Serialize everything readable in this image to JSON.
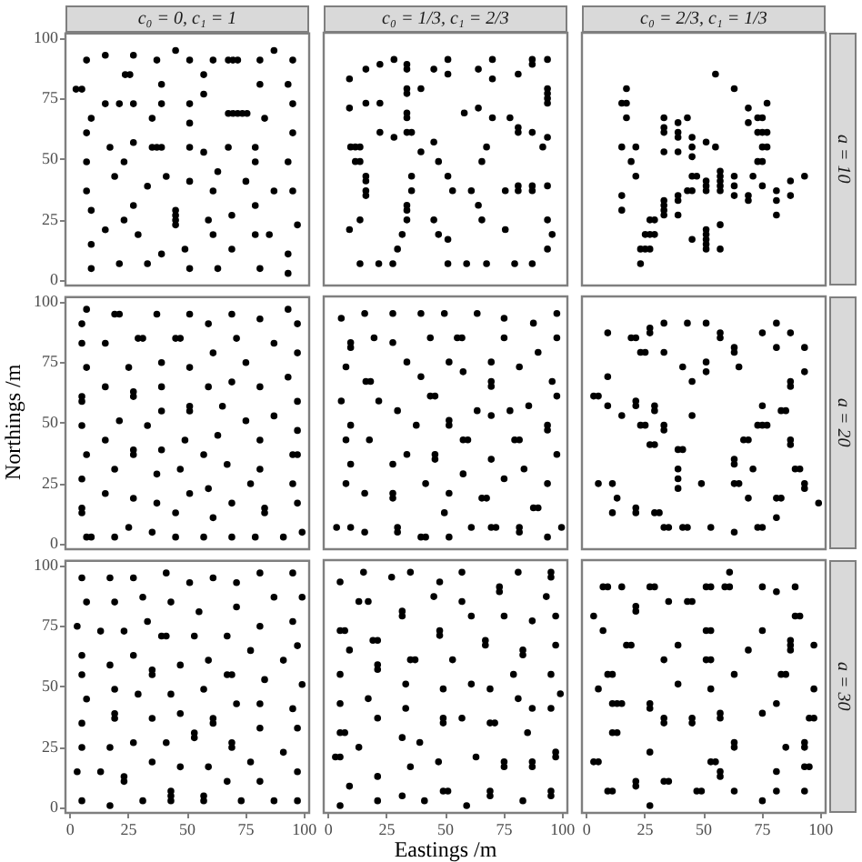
{
  "chart_data": [
    {
      "type": "scatter",
      "title": "c₀ = 0,  c₁ = 1",
      "color": "#000000",
      "marker": "circle",
      "xlim": [
        -2,
        102
      ],
      "ylim": [
        -2,
        102
      ],
      "xticks": [
        0,
        25,
        50,
        75,
        100
      ],
      "yticks": [
        0,
        25,
        50,
        75,
        100
      ],
      "tick_labels": "y",
      "x": [
        2.5,
        5,
        7,
        15,
        27,
        37,
        45,
        51,
        61,
        67.5,
        69.5,
        71.5,
        81,
        87,
        95,
        23.5,
        25.5,
        57,
        39,
        93,
        81,
        57,
        9,
        15,
        21,
        27,
        39,
        51,
        95,
        67.5,
        69.5,
        71.5,
        73.5,
        75.5,
        35,
        83,
        51,
        7,
        95,
        27,
        17,
        35,
        37,
        39,
        51,
        67.5,
        79,
        57,
        7,
        23,
        79,
        93,
        63,
        19,
        41,
        75,
        51,
        33,
        7,
        61,
        87,
        95,
        9,
        27,
        79,
        45,
        45,
        45,
        45,
        23,
        59,
        69,
        97,
        15,
        29,
        61,
        79,
        85,
        9,
        49,
        69,
        39,
        93,
        21,
        33,
        9,
        51,
        63,
        81,
        93
      ],
      "values": [
        79,
        79,
        91,
        93,
        93,
        91,
        95,
        91,
        91,
        91,
        91,
        91,
        91,
        95,
        91,
        85,
        85,
        85,
        81,
        81,
        81,
        77,
        67,
        73,
        73,
        73,
        73,
        73,
        73,
        69,
        69,
        69,
        69,
        69,
        67,
        67,
        65,
        61,
        61,
        57,
        55,
        55,
        55,
        55,
        55,
        55,
        55,
        53,
        49,
        49,
        49,
        49,
        45,
        43,
        43,
        41,
        41,
        39,
        37,
        37,
        37,
        37,
        29,
        31,
        31,
        29,
        27,
        25,
        23,
        25,
        25,
        27,
        23,
        21,
        19,
        19,
        19,
        19,
        15,
        13,
        13,
        11,
        11,
        7,
        7,
        5,
        5,
        5,
        5,
        3
      ]
    },
    {
      "type": "scatter",
      "title": "c₀ = 1/3,  c₁ = 2/3",
      "color": "#000000",
      "marker": "circle",
      "xlim": [
        -2,
        102
      ],
      "ylim": [
        -2,
        102
      ],
      "xticks": [
        0,
        25,
        50,
        75,
        100
      ],
      "yticks": [
        0,
        25,
        50,
        75,
        100
      ],
      "tick_labels": false,
      "x": [
        9,
        9,
        16,
        22,
        28,
        33.5,
        33.5,
        33.5,
        33.5,
        39.5,
        33.5,
        33.5,
        45,
        16,
        22,
        22,
        28,
        33.5,
        35.5,
        9.5,
        11.5,
        13.5,
        11.5,
        13.5,
        16,
        16,
        16,
        16,
        39.5,
        45,
        35.5,
        35.5,
        33.5,
        33.5,
        33.5,
        13.5,
        9,
        31.5,
        29.5,
        13.5,
        21.5,
        27.5,
        45,
        47,
        47,
        51,
        51,
        64,
        70,
        70,
        81,
        87,
        87,
        93.5,
        93.5,
        93.5,
        93.5,
        93.5,
        58,
        64,
        70,
        77.5,
        81,
        81,
        87,
        93.5,
        67.5,
        91.5,
        65.5,
        51,
        53,
        61,
        75.5,
        81,
        81,
        87,
        87,
        93.5,
        64,
        65.5,
        93.5,
        51,
        75.5,
        95.5,
        93.5,
        51,
        59,
        67.5,
        79.5,
        87
      ],
      "values": [
        83,
        71,
        87,
        89,
        91,
        89,
        87,
        79,
        77,
        79,
        69,
        67,
        87,
        73,
        73,
        61,
        59,
        61,
        61,
        55,
        55,
        55,
        49,
        49,
        43,
        41,
        37,
        35,
        53,
        57,
        43,
        37,
        31,
        29,
        25,
        25,
        21,
        19,
        13,
        7,
        7,
        7,
        25,
        19,
        49,
        91,
        85,
        87,
        91,
        83,
        85,
        91,
        89,
        91,
        79,
        77,
        75,
        73,
        69,
        71,
        67,
        67,
        63,
        61,
        61,
        59,
        55,
        55,
        49,
        43,
        37,
        37,
        37,
        39,
        37,
        39,
        37,
        39,
        31,
        25,
        25,
        17,
        21,
        19,
        13,
        7,
        7,
        7,
        7,
        7
      ]
    },
    {
      "type": "scatter",
      "title": "c₀ = 2/3,  c₁ = 1/3",
      "y2label": "a = 10",
      "color": "#000000",
      "marker": "circle",
      "xlim": [
        -2,
        102
      ],
      "ylim": [
        -2,
        102
      ],
      "xticks": [
        0,
        25,
        50,
        75,
        100
      ],
      "yticks": [
        0,
        25,
        50,
        75,
        100
      ],
      "tick_labels": false,
      "x": [
        55,
        63,
        17,
        15,
        17,
        17,
        33,
        39,
        43,
        33,
        33,
        39,
        39,
        45,
        45,
        45,
        51,
        55,
        15,
        21,
        19,
        21,
        33,
        39,
        45,
        47,
        51,
        57,
        57,
        57,
        57,
        57,
        63,
        63,
        63,
        69,
        69,
        73,
        75,
        73,
        75,
        77,
        75,
        77,
        73,
        75,
        77,
        71,
        75,
        69,
        69,
        81,
        81,
        81,
        87,
        87,
        93,
        51,
        51,
        43,
        45,
        39,
        39,
        33,
        33,
        33,
        33,
        39,
        15,
        15,
        27,
        29,
        25,
        27,
        29,
        23,
        25,
        27,
        23,
        57,
        51,
        51,
        51,
        51,
        51,
        45,
        57
      ],
      "values": [
        85,
        79,
        79,
        73,
        73,
        67,
        67,
        65,
        67,
        63,
        61,
        61,
        59,
        59,
        55,
        51,
        57,
        55,
        55,
        55,
        49,
        43,
        53,
        53,
        43,
        43,
        41,
        45,
        43,
        41,
        39,
        37,
        43,
        39,
        35,
        71,
        65,
        67,
        67,
        61,
        61,
        61,
        55,
        55,
        49,
        49,
        73,
        43,
        39,
        35,
        33,
        37,
        33,
        27,
        41,
        35,
        43,
        39,
        37,
        37,
        37,
        35,
        33,
        33,
        31,
        29,
        27,
        27,
        35,
        29,
        25,
        25,
        19,
        19,
        19,
        13,
        13,
        13,
        7,
        23,
        21,
        19,
        17,
        15,
        13,
        17,
        13
      ]
    },
    {
      "type": "scatter",
      "ylabel": "Northings /m",
      "color": "#000000",
      "marker": "circle",
      "xlim": [
        -2,
        102
      ],
      "ylim": [
        -2,
        102
      ],
      "xticks": [
        0,
        25,
        50,
        75,
        100
      ],
      "yticks": [
        0,
        25,
        50,
        75,
        100
      ],
      "tick_labels": "y",
      "x": [
        7,
        5,
        5,
        19,
        21,
        37,
        51,
        59,
        69,
        81,
        93,
        97,
        15,
        29,
        31,
        45,
        47,
        71,
        87,
        61,
        97,
        7,
        25,
        39,
        51,
        75,
        93,
        5,
        5,
        15,
        27,
        27,
        39,
        59,
        69,
        81,
        97,
        39,
        51,
        51,
        65,
        21,
        5,
        33,
        75,
        87,
        97,
        15,
        49,
        63,
        81,
        7,
        27,
        27,
        39,
        57,
        67,
        95,
        97,
        19,
        47,
        81,
        37,
        5,
        59,
        77,
        95,
        15,
        51,
        5,
        5,
        27,
        37,
        45,
        69,
        83,
        83,
        97,
        61,
        25,
        35,
        7,
        9,
        19,
        45,
        57,
        69,
        79,
        91,
        99
      ],
      "values": [
        97,
        91,
        83,
        95,
        95,
        95,
        95,
        91,
        95,
        93,
        97,
        91,
        83,
        85,
        85,
        85,
        85,
        85,
        83,
        79,
        79,
        73,
        73,
        75,
        73,
        75,
        69,
        61,
        59,
        65,
        63,
        61,
        65,
        65,
        67,
        65,
        59,
        55,
        57,
        55,
        57,
        51,
        49,
        49,
        51,
        53,
        47,
        43,
        43,
        45,
        43,
        37,
        39,
        37,
        39,
        37,
        33,
        37,
        37,
        31,
        31,
        31,
        29,
        27,
        23,
        25,
        25,
        21,
        21,
        15,
        13,
        19,
        17,
        13,
        17,
        15,
        13,
        17,
        11,
        7,
        5,
        3,
        3,
        3,
        3,
        3,
        3,
        3,
        3,
        5
      ]
    },
    {
      "type": "scatter",
      "color": "#000000",
      "marker": "circle",
      "xlim": [
        -2,
        102
      ],
      "ylim": [
        -2,
        102
      ],
      "xticks": [
        0,
        25,
        50,
        75,
        100
      ],
      "yticks": [
        0,
        25,
        50,
        75,
        100
      ],
      "tick_labels": false,
      "x": [
        5.5,
        15.5,
        27.5,
        39.5,
        49.5,
        9.5,
        9.5,
        19.5,
        27.5,
        43.5,
        7.5,
        16,
        18,
        33.5,
        39.5,
        43.5,
        45.5,
        5.5,
        21.5,
        29.5,
        37.5,
        9.5,
        7.5,
        17.5,
        9.5,
        27.5,
        33.5,
        7.5,
        15.5,
        27.5,
        27.5,
        41.5,
        3.5,
        9.5,
        15.5,
        29.5,
        29.5,
        39.5,
        41.5,
        49.5,
        63.5,
        75,
        87.5,
        97.5,
        55,
        57,
        75,
        97.5,
        89.5,
        51.5,
        57.5,
        69.5,
        81.5,
        69.5,
        69.5,
        95.5,
        97.5,
        63.5,
        69.5,
        77.5,
        85.5,
        51.5,
        51.5,
        93.5,
        93.5,
        57.5,
        59.5,
        79.5,
        81.5,
        45.5,
        45.5,
        69.5,
        97.5,
        57.5,
        83.5,
        75,
        93.5,
        51.5,
        65.5,
        67.5,
        87.5,
        89.5,
        61,
        69.5,
        71.5,
        81.5,
        81.5,
        93.5,
        99.5,
        51.5
      ],
      "values": [
        93,
        95,
        95,
        95,
        95,
        83,
        81,
        85,
        83,
        85,
        73,
        67,
        67,
        75,
        69,
        61,
        61,
        59,
        59,
        55,
        49,
        49,
        43,
        43,
        33,
        33,
        37,
        25,
        21,
        21,
        19,
        25,
        7,
        7,
        5,
        7,
        5,
        3,
        3,
        13,
        95,
        93,
        91,
        95,
        85,
        85,
        85,
        85,
        79,
        75,
        71,
        75,
        73,
        67,
        65,
        67,
        61,
        55,
        53,
        55,
        57,
        51,
        49,
        49,
        47,
        43,
        43,
        43,
        43,
        37,
        35,
        35,
        37,
        29,
        31,
        27,
        25,
        21,
        19,
        19,
        15,
        15,
        7,
        7,
        7,
        7,
        5,
        3,
        7,
        3
      ]
    },
    {
      "type": "scatter",
      "y2label": "a = 20",
      "color": "#000000",
      "marker": "circle",
      "xlim": [
        -2,
        102
      ],
      "ylim": [
        -2,
        102
      ],
      "xticks": [
        0,
        25,
        50,
        75,
        100
      ],
      "yticks": [
        0,
        25,
        50,
        75,
        100
      ],
      "tick_labels": false,
      "x": [
        9,
        19,
        21,
        27,
        27,
        33,
        43,
        51,
        57,
        57,
        63,
        63,
        75,
        81,
        87,
        81,
        93,
        23,
        25,
        33,
        41,
        51,
        51,
        65,
        9,
        45,
        87,
        87,
        93,
        3,
        5,
        9,
        15,
        21,
        21,
        29,
        29,
        45,
        23,
        25,
        33,
        33,
        75,
        83,
        85,
        73,
        75,
        77,
        27,
        29,
        39,
        41,
        67,
        69,
        87,
        87,
        63,
        63,
        39,
        71,
        89,
        91,
        5,
        11,
        39,
        39,
        49,
        63,
        65,
        93,
        93,
        13,
        69,
        81,
        83,
        99,
        11,
        21,
        21,
        29,
        31,
        81,
        33,
        35,
        41,
        43,
        53,
        63,
        73,
        75
      ],
      "values": [
        87,
        85,
        85,
        89,
        87,
        91,
        91,
        91,
        87,
        85,
        81,
        79,
        87,
        91,
        87,
        81,
        81,
        79,
        79,
        79,
        73,
        75,
        71,
        73,
        69,
        67,
        67,
        65,
        71,
        61,
        61,
        57,
        53,
        59,
        57,
        57,
        55,
        53,
        49,
        49,
        49,
        47,
        57,
        55,
        55,
        49,
        49,
        49,
        41,
        41,
        39,
        39,
        43,
        43,
        43,
        41,
        35,
        33,
        31,
        31,
        31,
        31,
        25,
        25,
        27,
        23,
        25,
        25,
        25,
        25,
        23,
        19,
        19,
        19,
        19,
        17,
        13,
        15,
        13,
        13,
        13,
        11,
        7,
        7,
        7,
        7,
        7,
        5,
        7,
        7
      ]
    },
    {
      "type": "scatter",
      "color": "#000000",
      "marker": "circle",
      "xlim": [
        -2,
        102
      ],
      "ylim": [
        -2,
        102
      ],
      "xticks": [
        0,
        25,
        50,
        75,
        100
      ],
      "yticks": [
        0,
        25,
        50,
        75,
        100
      ],
      "x": [
        5,
        17,
        27,
        41,
        51,
        61,
        71,
        81,
        95,
        7,
        19,
        31,
        43,
        71,
        87,
        99,
        55,
        3,
        13,
        23,
        33,
        39,
        41,
        53,
        67,
        81,
        95,
        77,
        97,
        5,
        27,
        17,
        47,
        59,
        91,
        35,
        35,
        5,
        67,
        69,
        83,
        19,
        57,
        99,
        7,
        29,
        43,
        71,
        81,
        95,
        5,
        19,
        19,
        35,
        47,
        61,
        61,
        53,
        53,
        81,
        97,
        5,
        17,
        27,
        41,
        69,
        69,
        91,
        35,
        47,
        59,
        77,
        97,
        3,
        13,
        23,
        23,
        67,
        81,
        43,
        43,
        43,
        57,
        57,
        5,
        31,
        73,
        87,
        97,
        17
      ],
      "values": [
        95,
        95,
        95,
        97,
        93,
        95,
        93,
        97,
        97,
        85,
        85,
        87,
        85,
        83,
        87,
        87,
        81,
        75,
        73,
        73,
        77,
        71,
        71,
        71,
        71,
        75,
        77,
        65,
        67,
        63,
        63,
        59,
        59,
        61,
        61,
        57,
        55,
        55,
        55,
        55,
        53,
        49,
        49,
        51,
        45,
        47,
        47,
        43,
        43,
        41,
        35,
        39,
        37,
        37,
        39,
        37,
        35,
        31,
        29,
        33,
        33,
        25,
        25,
        27,
        27,
        27,
        25,
        23,
        19,
        17,
        17,
        19,
        15,
        15,
        15,
        13,
        11,
        11,
        11,
        7,
        5,
        3,
        5,
        3,
        3,
        3,
        3,
        3,
        3,
        1
      ]
    },
    {
      "type": "scatter",
      "xlabel": "Eastings /m",
      "color": "#000000",
      "marker": "circle",
      "xlim": [
        -2,
        102
      ],
      "ylim": [
        -2,
        102
      ],
      "xticks": [
        0,
        25,
        50,
        75,
        100
      ],
      "yticks": [
        0,
        25,
        50,
        75,
        100
      ],
      "tick_labels": "x",
      "x": [
        5,
        15,
        27,
        35,
        47.5,
        13,
        17,
        5,
        7,
        9,
        19,
        21,
        31.5,
        31.5,
        21,
        21,
        35,
        37,
        5,
        47.5,
        47.5,
        45,
        17,
        5,
        21,
        5,
        7,
        33,
        33,
        31.5,
        3,
        5,
        13,
        39,
        21,
        9,
        21,
        31.5,
        41,
        5,
        35,
        57,
        81,
        95,
        95,
        73,
        73,
        57,
        93,
        61,
        75,
        87,
        97,
        67,
        67,
        83,
        83,
        97,
        53,
        79,
        95,
        61,
        69,
        49,
        81,
        87,
        95,
        99,
        57,
        49,
        49,
        69,
        71,
        85,
        47,
        63,
        75,
        75,
        87,
        87,
        97,
        97,
        49,
        51,
        69,
        69,
        83,
        95,
        95,
        59
      ],
      "values": [
        93,
        97,
        95,
        97,
        93,
        85,
        85,
        73,
        73,
        65,
        69,
        69,
        81,
        79,
        59,
        57,
        61,
        61,
        55,
        73,
        71,
        87,
        45,
        43,
        37,
        31,
        31,
        51,
        41,
        29,
        21,
        21,
        25,
        27,
        13,
        9,
        3,
        5,
        3,
        1,
        17,
        97,
        97,
        97,
        95,
        91,
        89,
        85,
        87,
        79,
        79,
        77,
        79,
        69,
        67,
        65,
        63,
        67,
        61,
        55,
        55,
        51,
        49,
        49,
        45,
        41,
        41,
        47,
        37,
        37,
        35,
        35,
        35,
        31,
        19,
        21,
        19,
        17,
        19,
        17,
        23,
        21,
        7,
        7,
        7,
        5,
        3,
        7,
        5,
        1
      ]
    },
    {
      "type": "scatter",
      "y2label": "a = 30",
      "color": "#000000",
      "marker": "circle",
      "xlim": [
        -2,
        102
      ],
      "ylim": [
        -2,
        102
      ],
      "xticks": [
        0,
        25,
        50,
        75,
        100
      ],
      "yticks": [
        0,
        25,
        50,
        75,
        100
      ],
      "tick_labels": "x",
      "x": [
        7,
        9,
        15,
        27,
        29,
        51,
        53,
        59,
        61,
        61,
        75,
        81,
        89,
        3,
        21,
        21,
        35,
        43,
        45,
        89,
        91,
        7,
        51,
        53,
        75,
        17,
        19,
        39,
        69,
        87,
        87,
        87,
        97,
        33,
        51,
        53,
        9,
        11,
        63,
        83,
        85,
        5,
        39,
        53,
        97,
        11,
        13,
        15,
        27,
        27,
        33,
        33,
        45,
        45,
        57,
        57,
        75,
        81,
        95,
        97,
        11,
        13,
        63,
        63,
        85,
        93,
        93,
        27,
        3,
        5,
        53,
        55,
        57,
        57,
        93,
        95,
        81,
        21,
        21,
        33,
        35,
        9,
        11,
        47,
        49,
        63,
        81,
        93,
        27,
        75
      ],
      "values": [
        91,
        91,
        91,
        91,
        91,
        91,
        91,
        91,
        91,
        97,
        91,
        89,
        91,
        79,
        83,
        81,
        85,
        85,
        85,
        79,
        79,
        73,
        73,
        73,
        73,
        67,
        67,
        67,
        65,
        69,
        67,
        65,
        67,
        61,
        61,
        61,
        55,
        55,
        55,
        55,
        55,
        49,
        51,
        49,
        49,
        43,
        43,
        43,
        43,
        41,
        37,
        35,
        37,
        35,
        39,
        37,
        39,
        43,
        37,
        37,
        31,
        31,
        27,
        25,
        25,
        27,
        25,
        23,
        19,
        19,
        19,
        19,
        15,
        13,
        17,
        17,
        15,
        11,
        9,
        11,
        11,
        7,
        7,
        7,
        7,
        7,
        7,
        7,
        1,
        3
      ]
    }
  ]
}
